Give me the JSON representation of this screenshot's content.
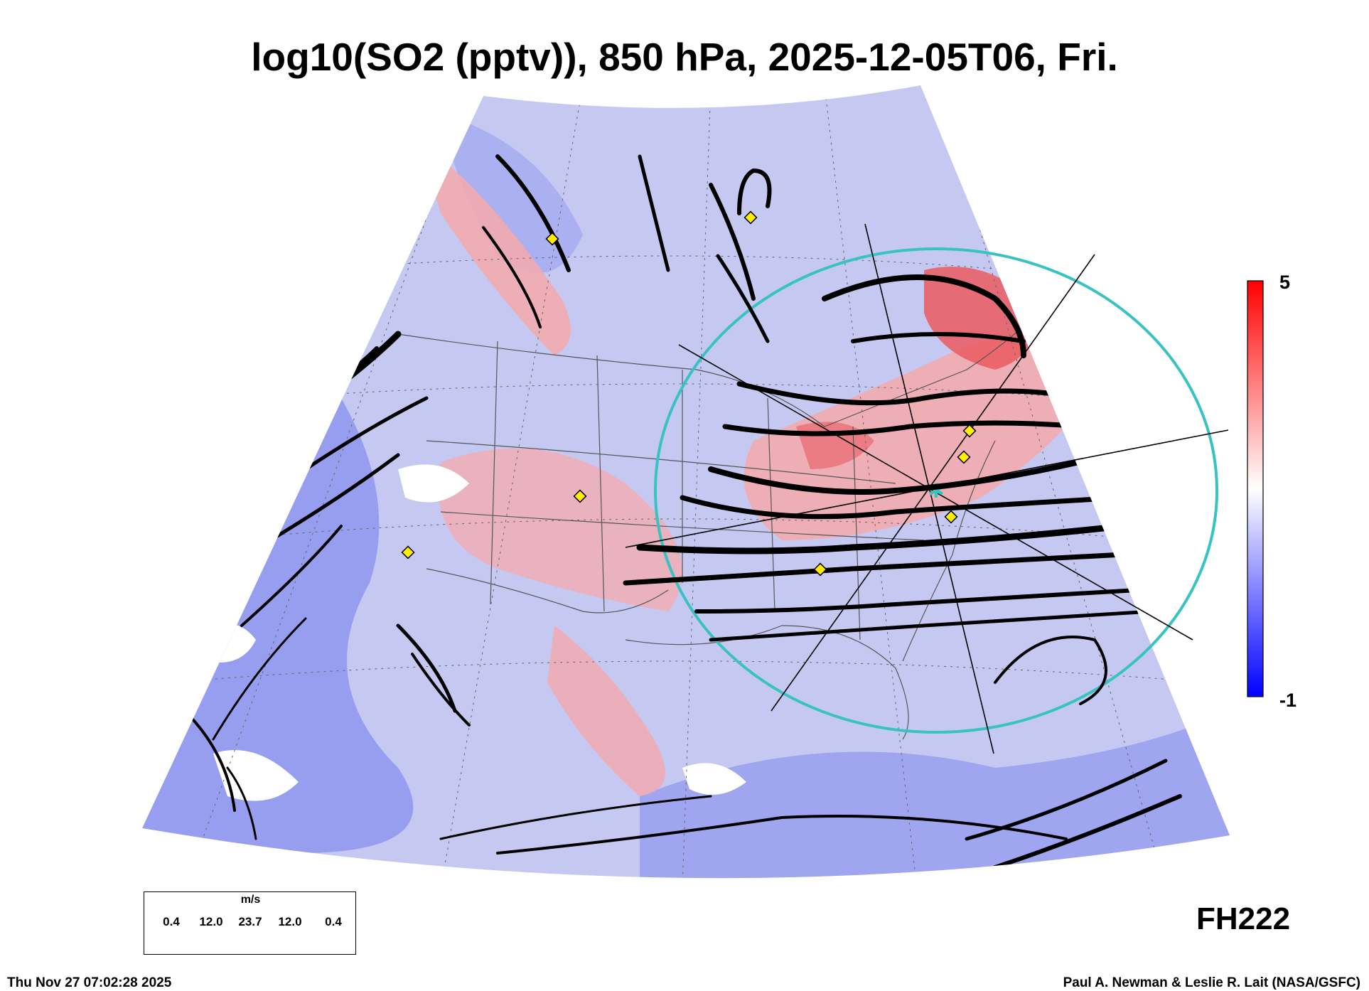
{
  "title": "log10(SO2 (pptv)), 850 hPa, 2025-12-05T06, Fri.",
  "colorbar": {
    "max_label": "5",
    "min_label": "-1",
    "range": [
      -1,
      5
    ],
    "colors": {
      "max": "#ff0000",
      "mid": "#ffffff",
      "min": "#0000ff"
    }
  },
  "forecast_hour": "FH222",
  "timestamp": "Thu Nov 27 07:02:28 2025",
  "credits": "Paul A. Newman & Leslie R. Lait (NASA/GSFC)",
  "wind_legend": {
    "unit": "m/s",
    "ticks": [
      "0.4",
      "12.0",
      "23.7",
      "12.0",
      "0.4"
    ]
  },
  "map": {
    "field_colors": {
      "low": "#8e96ee",
      "background": "#c5c9f2",
      "high": "#f4a9ac",
      "peak": "#ea5a60"
    },
    "ring_color": "#38c2c2",
    "marker_color": "#ffee00",
    "marker_count": 8,
    "streamline_color": "#000000"
  }
}
